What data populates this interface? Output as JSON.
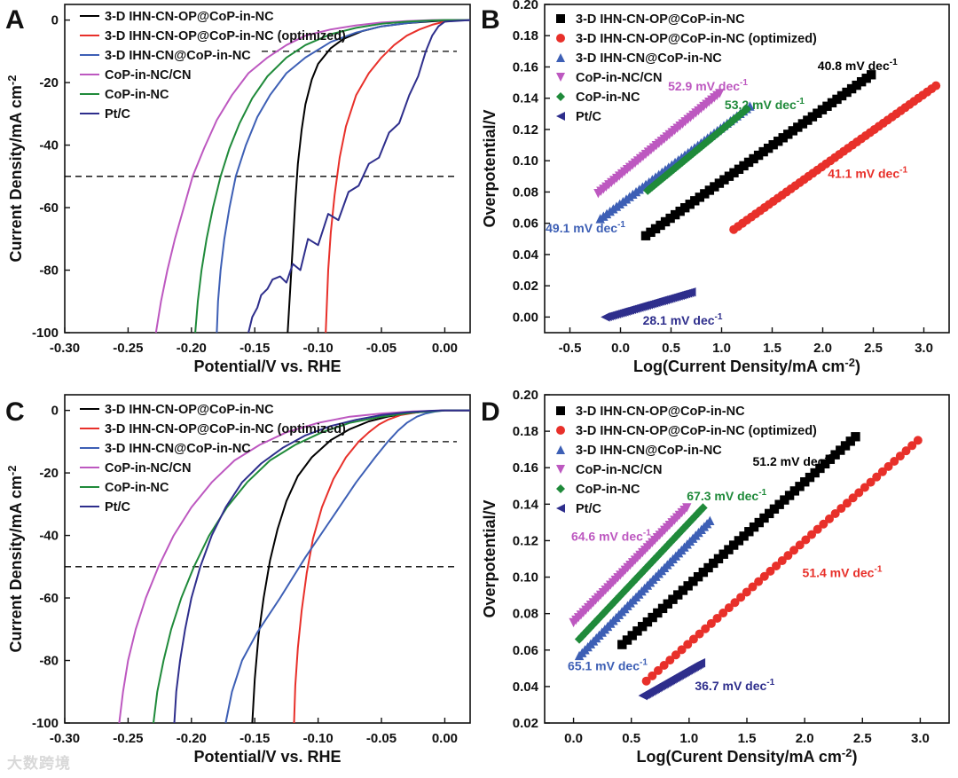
{
  "watermark": "大数跨境",
  "colors": {
    "black": "#000000",
    "red": "#e8302a",
    "blue": "#3d5fb5",
    "magenta": "#bd58c0",
    "green": "#1f8a3a",
    "navy": "#2e2e8c",
    "axis": "#111111"
  },
  "panel_labels": [
    "A",
    "B",
    "C",
    "D"
  ],
  "chart_data": [
    {
      "panel": "A",
      "type": "line",
      "xlabel": "Potential/V vs. RHE",
      "ylabel": "Current Density/mA cm",
      "ylabel_sup": "-2",
      "xlim": [
        -0.3,
        0.02
      ],
      "ylim": [
        -100,
        5
      ],
      "xticks": [
        "-0.30",
        "-0.25",
        "-0.20",
        "-0.15",
        "-0.10",
        "-0.05",
        "0.00"
      ],
      "yticks": [
        "0",
        "-20",
        "-40",
        "-60",
        "-80",
        "-100"
      ],
      "hlines": [
        -10,
        -50
      ],
      "legend": [
        "3-D IHN-CN-OP@CoP-in-NC",
        "3-D IHN-CN-OP@CoP-in-NC (optimized)",
        "3-D IHN-CN@CoP-in-NC",
        "CoP-in-NC/CN",
        "CoP-in-NC",
        "Pt/C"
      ],
      "series": [
        {
          "name": "3-D IHN-CN-OP@CoP-in-NC",
          "color": "black",
          "x": [
            -0.124,
            -0.122,
            -0.12,
            -0.118,
            -0.116,
            -0.113,
            -0.11,
            -0.105,
            -0.1,
            -0.09,
            -0.08,
            -0.065,
            -0.05,
            -0.03,
            -0.01,
            0.005,
            0.02
          ],
          "y": [
            -100,
            -86,
            -72,
            -58,
            -46,
            -35,
            -27,
            -19,
            -14,
            -9,
            -6,
            -3.5,
            -2,
            -1,
            -0.4,
            0,
            0
          ]
        },
        {
          "name": "3-D IHN-CN-OP@CoP-in-NC (optimized)",
          "color": "red",
          "x": [
            -0.094,
            -0.093,
            -0.092,
            -0.09,
            -0.087,
            -0.083,
            -0.078,
            -0.07,
            -0.06,
            -0.05,
            -0.04,
            -0.03,
            -0.02,
            -0.01,
            0.0,
            0.01,
            0.02
          ],
          "y": [
            -100,
            -90,
            -80,
            -68,
            -56,
            -44,
            -34,
            -24,
            -17,
            -12,
            -8,
            -5,
            -3,
            -1.5,
            -0.5,
            0,
            0
          ]
        },
        {
          "name": "3-D IHN-CN@CoP-in-NC",
          "color": "blue",
          "x": [
            -0.18,
            -0.179,
            -0.177,
            -0.174,
            -0.17,
            -0.165,
            -0.157,
            -0.148,
            -0.138,
            -0.125,
            -0.11,
            -0.09,
            -0.07,
            -0.05,
            -0.03,
            -0.01,
            0.0,
            0.02
          ],
          "y": [
            -100,
            -90,
            -80,
            -70,
            -60,
            -50,
            -40,
            -31,
            -24,
            -17,
            -12,
            -7,
            -4,
            -2,
            -1,
            -0.2,
            0,
            0
          ]
        },
        {
          "name": "CoP-in-NC/CN",
          "color": "magenta",
          "x": [
            -0.228,
            -0.224,
            -0.219,
            -0.213,
            -0.206,
            -0.199,
            -0.19,
            -0.18,
            -0.168,
            -0.155,
            -0.14,
            -0.125,
            -0.11,
            -0.09,
            -0.07,
            -0.05,
            -0.03,
            -0.01,
            0.0,
            0.02
          ],
          "y": [
            -100,
            -90,
            -80,
            -70,
            -60,
            -50,
            -41,
            -32,
            -24,
            -17,
            -12,
            -8,
            -5,
            -3,
            -1.7,
            -0.8,
            -0.3,
            0,
            0,
            0
          ]
        },
        {
          "name": "CoP-in-NC",
          "color": "green",
          "x": [
            -0.197,
            -0.195,
            -0.192,
            -0.188,
            -0.183,
            -0.177,
            -0.17,
            -0.162,
            -0.152,
            -0.14,
            -0.125,
            -0.11,
            -0.09,
            -0.07,
            -0.05,
            -0.03,
            -0.01,
            0.0,
            0.02
          ],
          "y": [
            -100,
            -90,
            -80,
            -70,
            -60,
            -50,
            -41,
            -33,
            -25,
            -18,
            -12,
            -8,
            -4.5,
            -2.5,
            -1.2,
            -0.5,
            -0.1,
            0,
            0
          ]
        },
        {
          "name": "Pt/C",
          "color": "navy",
          "x": [
            -0.155,
            -0.152,
            -0.148,
            -0.145,
            -0.14,
            -0.136,
            -0.13,
            -0.125,
            -0.12,
            -0.114,
            -0.108,
            -0.1,
            -0.092,
            -0.084,
            -0.076,
            -0.068,
            -0.06,
            -0.052,
            -0.044,
            -0.036,
            -0.028,
            -0.021,
            -0.015,
            -0.01,
            -0.005,
            0.0,
            0.02
          ],
          "y": [
            -100,
            -95,
            -92,
            -88,
            -86,
            -83,
            -82,
            -84,
            -78,
            -80,
            -70,
            -72,
            -62,
            -64,
            -55,
            -53,
            -46,
            -44,
            -36,
            -33,
            -24,
            -18,
            -10,
            -5,
            -2,
            -0.5,
            0
          ]
        }
      ]
    },
    {
      "panel": "B",
      "type": "scatter",
      "xlabel": "Log(Current Density/mA cm",
      "xlabel_sup": "-2",
      "xlabel_end": ")",
      "ylabel": "Overpotential/V",
      "xlim": [
        -0.75,
        3.25
      ],
      "ylim": [
        -0.01,
        0.2
      ],
      "xticks": [
        "-0.5",
        "0.0",
        "0.5",
        "1.0",
        "1.5",
        "2.0",
        "2.5",
        "3.0"
      ],
      "yticks": [
        "0.00",
        "0.02",
        "0.04",
        "0.06",
        "0.08",
        "0.10",
        "0.12",
        "0.14",
        "0.16",
        "0.18",
        "0.20"
      ],
      "legend": [
        "3-D IHN-CN-OP@CoP-in-NC",
        "3-D IHN-CN-OP@CoP-in-NC (optimized)",
        "3-D IHN-CN@CoP-in-NC",
        "CoP-in-NC/CN",
        "CoP-in-NC",
        "Pt/C"
      ],
      "series": [
        {
          "name": "3-D IHN-CN-OP@CoP-in-NC",
          "color": "black",
          "marker": "square",
          "x": [
            0.25,
            2.48
          ],
          "y": [
            0.052,
            0.155
          ]
        },
        {
          "name": "3-D IHN-CN-OP@CoP-in-NC (optimized)",
          "color": "red",
          "marker": "circle",
          "x": [
            1.12,
            3.12
          ],
          "y": [
            0.056,
            0.148
          ]
        },
        {
          "name": "3-D IHN-CN@CoP-in-NC",
          "color": "blue",
          "marker": "triangle-up",
          "x": [
            -0.2,
            1.28
          ],
          "y": [
            0.063,
            0.135
          ]
        },
        {
          "name": "CoP-in-NC/CN",
          "color": "magenta",
          "marker": "triangle-down",
          "x": [
            -0.22,
            0.98
          ],
          "y": [
            0.079,
            0.143
          ]
        },
        {
          "name": "CoP-in-NC",
          "color": "green",
          "marker": "diamond",
          "x": [
            0.27,
            1.25
          ],
          "y": [
            0.081,
            0.133
          ]
        },
        {
          "name": "Pt/C",
          "color": "navy",
          "marker": "triangle-left",
          "x": [
            -0.15,
            0.7
          ],
          "y": [
            0.0,
            0.016
          ]
        }
      ],
      "annotations": [
        {
          "text": "40.8 mV dec",
          "sup": "-1",
          "color": "black",
          "x": 1.95,
          "y": 0.158
        },
        {
          "text": "41.1 mV dec",
          "sup": "-1",
          "color": "red",
          "x": 2.05,
          "y": 0.089
        },
        {
          "text": "52.9 mV dec",
          "sup": "-1",
          "color": "magenta",
          "x": 0.47,
          "y": 0.145
        },
        {
          "text": "53.2 mV dec",
          "sup": "-1",
          "color": "green",
          "x": 1.03,
          "y": 0.133
        },
        {
          "text": "49.1 mV dec",
          "sup": "-1",
          "color": "blue",
          "x": -0.74,
          "y": 0.054
        },
        {
          "text": "28.1 mV dec",
          "sup": "-1",
          "color": "navy",
          "x": 0.22,
          "y": -0.005
        }
      ]
    },
    {
      "panel": "C",
      "type": "line",
      "xlabel": "Potential/V vs. RHE",
      "ylabel": "Current Density/mA cm",
      "ylabel_sup": "-2",
      "xlim": [
        -0.3,
        0.02
      ],
      "ylim": [
        -100,
        5
      ],
      "xticks": [
        "-0.30",
        "-0.25",
        "-0.20",
        "-0.15",
        "-0.10",
        "-0.05",
        "0.00"
      ],
      "yticks": [
        "0",
        "-20",
        "-40",
        "-60",
        "-80",
        "-100"
      ],
      "hlines": [
        -10,
        -50
      ],
      "legend": [
        "3-D IHN-CN-OP@CoP-in-NC",
        "3-D IHN-CN-OP@CoP-in-NC (optimized)",
        "3-D IHN-CN@CoP-in-NC",
        "CoP-in-NC/CN",
        "CoP-in-NC",
        "Pt/C"
      ],
      "series": [
        {
          "name": "3-D IHN-CN-OP@CoP-in-NC",
          "color": "black",
          "x": [
            -0.152,
            -0.15,
            -0.147,
            -0.143,
            -0.138,
            -0.132,
            -0.125,
            -0.116,
            -0.105,
            -0.09,
            -0.075,
            -0.06,
            -0.045,
            -0.03,
            -0.015,
            0.0,
            0.02
          ],
          "y": [
            -100,
            -86,
            -72,
            -60,
            -48,
            -38,
            -29,
            -21,
            -15,
            -9.5,
            -6,
            -3.5,
            -2,
            -1,
            -0.3,
            0,
            0
          ]
        },
        {
          "name": "3-D IHN-CN-OP@CoP-in-NC (optimized)",
          "color": "red",
          "x": [
            -0.119,
            -0.118,
            -0.116,
            -0.113,
            -0.109,
            -0.104,
            -0.097,
            -0.088,
            -0.078,
            -0.068,
            -0.06,
            -0.052,
            -0.045,
            -0.035,
            -0.02,
            0.0,
            0.02
          ],
          "y": [
            -100,
            -88,
            -76,
            -64,
            -52,
            -41,
            -31,
            -22,
            -15,
            -10,
            -7,
            -4.5,
            -3,
            -1.5,
            -0.5,
            0,
            0
          ]
        },
        {
          "name": "3-D IHN-CN@CoP-in-NC",
          "color": "blue",
          "x": [
            -0.173,
            -0.168,
            -0.16,
            -0.148,
            -0.13,
            -0.11,
            -0.09,
            -0.07,
            -0.055,
            -0.045,
            -0.037,
            -0.03,
            -0.022,
            -0.015,
            -0.008,
            0.0,
            0.02
          ],
          "y": [
            -100,
            -90,
            -80,
            -71,
            -60,
            -47,
            -35,
            -23,
            -15,
            -10,
            -6.5,
            -4,
            -2,
            -1,
            -0.4,
            0,
            0
          ]
        },
        {
          "name": "CoP-in-NC/CN",
          "color": "magenta",
          "x": [
            -0.257,
            -0.254,
            -0.25,
            -0.244,
            -0.236,
            -0.226,
            -0.214,
            -0.2,
            -0.184,
            -0.166,
            -0.146,
            -0.125,
            -0.1,
            -0.075,
            -0.05,
            -0.025,
            0.0,
            0.02
          ],
          "y": [
            -100,
            -90,
            -80,
            -70,
            -60,
            -50,
            -40,
            -31,
            -23,
            -16,
            -11,
            -7,
            -4,
            -2,
            -1,
            -0.3,
            0,
            0
          ]
        },
        {
          "name": "CoP-in-NC",
          "color": "green",
          "x": [
            -0.23,
            -0.227,
            -0.222,
            -0.216,
            -0.208,
            -0.198,
            -0.186,
            -0.172,
            -0.156,
            -0.138,
            -0.118,
            -0.097,
            -0.075,
            -0.05,
            -0.025,
            0.0,
            0.02
          ],
          "y": [
            -100,
            -90,
            -80,
            -70,
            -60,
            -50,
            -40,
            -31,
            -23,
            -16,
            -11,
            -7,
            -4,
            -2,
            -0.7,
            0,
            0
          ]
        },
        {
          "name": "Pt/C",
          "color": "navy",
          "x": [
            -0.2135,
            -0.212,
            -0.209,
            -0.205,
            -0.2,
            -0.193,
            -0.184,
            -0.173,
            -0.16,
            -0.145,
            -0.128,
            -0.11,
            -0.09,
            -0.07,
            -0.05,
            -0.03,
            -0.01,
            0.0,
            0.02
          ],
          "y": [
            -100,
            -90,
            -80,
            -70,
            -60,
            -50,
            -40,
            -31,
            -23,
            -17,
            -12,
            -8,
            -5,
            -3,
            -1.5,
            -0.6,
            -0.1,
            0,
            0
          ]
        }
      ]
    },
    {
      "panel": "D",
      "type": "scatter",
      "xlabel": "Log(Curent Density/mA cm",
      "xlabel_sup": "-2",
      "xlabel_end": ")",
      "ylabel": "Overpotential/V",
      "xlim": [
        -0.25,
        3.25
      ],
      "ylim": [
        0.02,
        0.2
      ],
      "xticks": [
        "0.0",
        "0.5",
        "1.0",
        "1.5",
        "2.0",
        "2.5",
        "3.0"
      ],
      "yticks": [
        "0.02",
        "0.04",
        "0.06",
        "0.08",
        "0.10",
        "0.12",
        "0.14",
        "0.16",
        "0.18",
        "0.20"
      ],
      "legend": [
        "3-D IHN-CN-OP@CoP-in-NC",
        "3-D IHN-CN-OP@CoP-in-NC (optimized)",
        "3-D IHN-CN@CoP-in-NC",
        "CoP-in-NC/CN",
        "CoP-in-NC",
        "Pt/C"
      ],
      "series": [
        {
          "name": "3-D IHN-CN-OP@CoP-in-NC",
          "color": "black",
          "marker": "square",
          "x": [
            0.42,
            2.44
          ],
          "y": [
            0.063,
            0.177
          ]
        },
        {
          "name": "3-D IHN-CN-OP@CoP-in-NC (optimized)",
          "color": "red",
          "marker": "circle",
          "x": [
            0.63,
            2.98
          ],
          "y": [
            0.043,
            0.175
          ]
        },
        {
          "name": "3-D IHN-CN@CoP-in-NC",
          "color": "blue",
          "marker": "triangle-up",
          "x": [
            0.05,
            1.18
          ],
          "y": [
            0.057,
            0.131
          ]
        },
        {
          "name": "CoP-in-NC/CN",
          "color": "magenta",
          "marker": "triangle-down",
          "x": [
            0.0,
            0.98
          ],
          "y": [
            0.075,
            0.138
          ]
        },
        {
          "name": "CoP-in-NC",
          "color": "green",
          "marker": "diamond",
          "x": [
            0.05,
            1.12
          ],
          "y": [
            0.066,
            0.138
          ]
        },
        {
          "name": "Pt/C",
          "color": "navy",
          "marker": "triangle-left",
          "x": [
            0.6,
            1.1
          ],
          "y": [
            0.035,
            0.053
          ]
        }
      ],
      "annotations": [
        {
          "text": "51.2 mV dec",
          "sup": "-1",
          "color": "black",
          "x": 1.55,
          "y": 0.161
        },
        {
          "text": "51.4 mV dec",
          "sup": "-1",
          "color": "red",
          "x": 1.98,
          "y": 0.1
        },
        {
          "text": "67.3 mV dec",
          "sup": "-1",
          "color": "green",
          "x": 0.98,
          "y": 0.142
        },
        {
          "text": "64.6 mV dec",
          "sup": "-1",
          "color": "magenta",
          "x": -0.02,
          "y": 0.12
        },
        {
          "text": "65.1 mV dec",
          "sup": "-1",
          "color": "blue",
          "x": -0.05,
          "y": 0.049
        },
        {
          "text": "36.7 mV dec",
          "sup": "-1",
          "color": "navy",
          "x": 1.05,
          "y": 0.038
        }
      ]
    }
  ]
}
